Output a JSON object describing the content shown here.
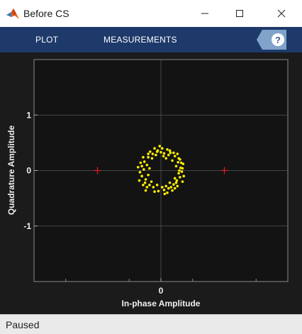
{
  "window": {
    "title": "Before CS",
    "app_icon": "matlab-icon",
    "controls": {
      "minimize": "minimize-icon",
      "maximize": "maximize-icon",
      "close": "close-icon"
    }
  },
  "toolstrip": {
    "tabs": [
      {
        "label": "PLOT"
      },
      {
        "label": "MEASUREMENTS"
      }
    ],
    "help_icon": "help-icon",
    "background": "#1e3a6a"
  },
  "status": {
    "text": "Paused"
  },
  "chart_data": {
    "type": "scatter",
    "title": "",
    "xlabel": "In-phase Amplitude",
    "ylabel": "Quadrature Amplitude",
    "xlim": [
      -2,
      2
    ],
    "ylim": [
      -2,
      2
    ],
    "xticks": [
      0
    ],
    "yticks": [
      1,
      0,
      -1
    ],
    "grid": true,
    "axes_background": "#131313",
    "grid_color": "#555555",
    "series": [
      {
        "color": "#ffee00",
        "marker": "dot",
        "points": [
          [
            0.02,
            0.4
          ],
          [
            0.1,
            0.38
          ],
          [
            -0.05,
            0.36
          ],
          [
            0.15,
            0.32
          ],
          [
            -0.13,
            0.3
          ],
          [
            0.22,
            0.26
          ],
          [
            -0.2,
            0.24
          ],
          [
            0.05,
            0.31
          ],
          [
            -0.08,
            0.28
          ],
          [
            0.18,
            0.18
          ],
          [
            0.27,
            0.15
          ],
          [
            -0.26,
            0.16
          ],
          [
            -0.3,
            0.08
          ],
          [
            0.31,
            0.05
          ],
          [
            0.24,
            0.08
          ],
          [
            -0.22,
            0.1
          ],
          [
            0.33,
            -0.02
          ],
          [
            -0.33,
            -0.03
          ],
          [
            0.28,
            -0.05
          ],
          [
            -0.27,
            0.02
          ],
          [
            0.3,
            -0.12
          ],
          [
            -0.3,
            -0.1
          ],
          [
            0.25,
            -0.18
          ],
          [
            -0.24,
            -0.16
          ],
          [
            0.2,
            -0.25
          ],
          [
            -0.18,
            -0.26
          ],
          [
            0.12,
            -0.32
          ],
          [
            -0.12,
            -0.3
          ],
          [
            0.05,
            -0.35
          ],
          [
            -0.04,
            -0.37
          ],
          [
            0.14,
            -0.22
          ],
          [
            -0.15,
            -0.2
          ],
          [
            0.22,
            -0.14
          ],
          [
            -0.2,
            -0.08
          ],
          [
            0.08,
            -0.28
          ],
          [
            -0.1,
            -0.38
          ],
          [
            0.16,
            -0.3
          ],
          [
            -0.25,
            -0.22
          ],
          [
            0.28,
            0.22
          ],
          [
            -0.17,
            0.34
          ],
          [
            0.0,
            0.33
          ],
          [
            0.12,
            0.28
          ],
          [
            -0.28,
            0.24
          ],
          [
            0.35,
            0.12
          ],
          [
            0.2,
            0.32
          ],
          [
            -0.34,
            -0.18
          ],
          [
            0.26,
            -0.28
          ],
          [
            -0.06,
            -0.26
          ],
          [
            0.34,
            -0.2
          ],
          [
            -0.32,
            0.14
          ],
          [
            0.08,
            0.22
          ],
          [
            -0.22,
            -0.3
          ],
          [
            0.18,
            -0.36
          ],
          [
            0.02,
            -0.3
          ],
          [
            0.29,
            0.0
          ],
          [
            -0.18,
            0.04
          ],
          [
            0.24,
            -0.22
          ],
          [
            -0.14,
            0.22
          ],
          [
            0.1,
            -0.4
          ],
          [
            -0.24,
            -0.36
          ],
          [
            0.3,
            0.2
          ],
          [
            -0.1,
            0.4
          ],
          [
            0.04,
            0.26
          ],
          [
            0.34,
            0.04
          ],
          [
            -0.36,
            0.06
          ],
          [
            0.14,
            0.36
          ],
          [
            -0.2,
            0.3
          ],
          [
            0.22,
            -0.32
          ],
          [
            -0.28,
            -0.26
          ],
          [
            0.36,
            -0.1
          ],
          [
            -0.02,
            0.44
          ],
          [
            0.06,
            -0.42
          ],
          [
            0.26,
            0.3
          ],
          [
            -0.06,
            0.34
          ],
          [
            0.32,
            0.14
          ]
        ]
      },
      {
        "color": "#e02020",
        "marker": "plus",
        "points": [
          [
            -1,
            0
          ],
          [
            1,
            0
          ]
        ]
      }
    ]
  }
}
